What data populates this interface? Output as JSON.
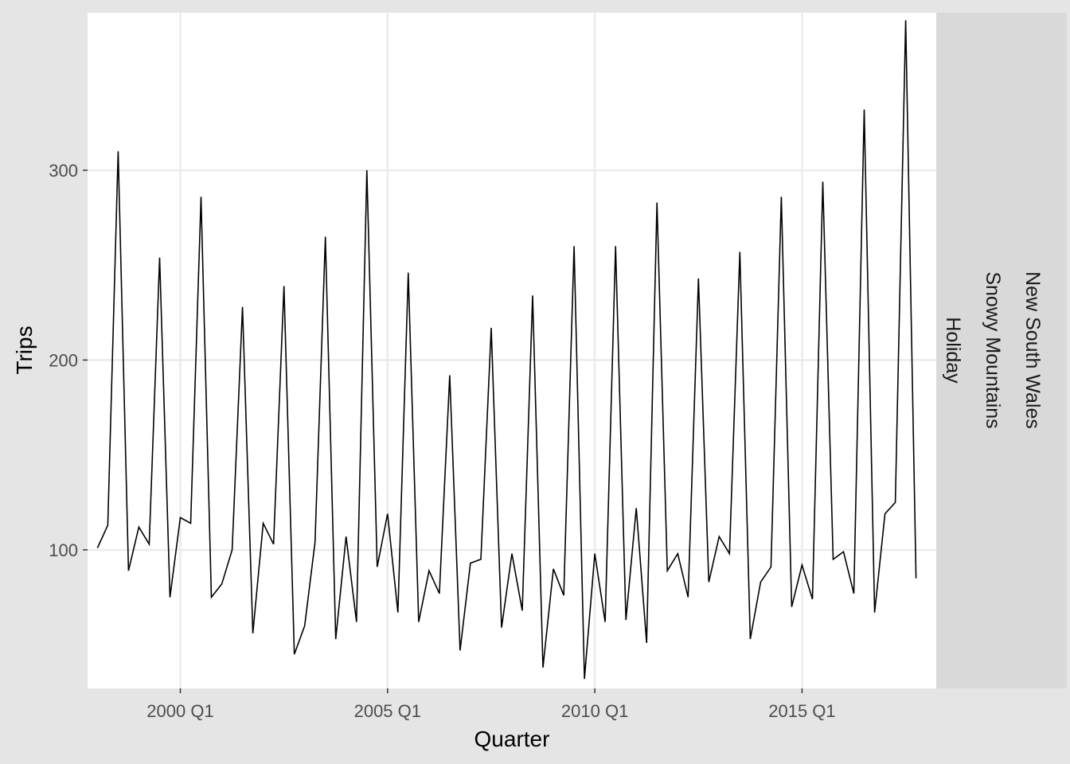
{
  "chart_data": {
    "type": "line",
    "xlabel": "Quarter",
    "ylabel": "Trips",
    "x_tick_labels": [
      "2000 Q1",
      "2005 Q1",
      "2010 Q1",
      "2015 Q1"
    ],
    "y_tick_labels": [
      "100",
      "200",
      "300"
    ],
    "ylim": [
      27,
      383
    ],
    "xlim": [
      "1997 Q4",
      "2018 Q2"
    ],
    "grid": true,
    "facet_strip": [
      "New South Wales",
      "Snowy Mountains",
      "Holiday"
    ],
    "colors": {
      "line": "#000000",
      "panel": "#ffffff",
      "background": "#e5e5e5",
      "strip": "#d9d9d9",
      "grid": "#ebebeb"
    },
    "series": [
      {
        "x": [
          "1998 Q1",
          "1998 Q2",
          "1998 Q3",
          "1998 Q4",
          "1999 Q1",
          "1999 Q2",
          "1999 Q3",
          "1999 Q4",
          "2000 Q1",
          "2000 Q2",
          "2000 Q3",
          "2000 Q4",
          "2001 Q1",
          "2001 Q2",
          "2001 Q3",
          "2001 Q4",
          "2002 Q1",
          "2002 Q2",
          "2002 Q3",
          "2002 Q4",
          "2003 Q1",
          "2003 Q2",
          "2003 Q3",
          "2003 Q4",
          "2004 Q1",
          "2004 Q2",
          "2004 Q3",
          "2004 Q4",
          "2005 Q1",
          "2005 Q2",
          "2005 Q3",
          "2005 Q4",
          "2006 Q1",
          "2006 Q2",
          "2006 Q3",
          "2006 Q4",
          "2007 Q1",
          "2007 Q2",
          "2007 Q3",
          "2007 Q4",
          "2008 Q1",
          "2008 Q2",
          "2008 Q3",
          "2008 Q4",
          "2009 Q1",
          "2009 Q2",
          "2009 Q3",
          "2009 Q4",
          "2010 Q1",
          "2010 Q2",
          "2010 Q3",
          "2010 Q4",
          "2011 Q1",
          "2011 Q2",
          "2011 Q3",
          "2011 Q4",
          "2012 Q1",
          "2012 Q2",
          "2012 Q3",
          "2012 Q4",
          "2013 Q1",
          "2013 Q2",
          "2013 Q3",
          "2013 Q4",
          "2014 Q1",
          "2014 Q2",
          "2014 Q3",
          "2014 Q4",
          "2015 Q1",
          "2015 Q2",
          "2015 Q3",
          "2015 Q4",
          "2016 Q1",
          "2016 Q2",
          "2016 Q3",
          "2016 Q4",
          "2017 Q1",
          "2017 Q2",
          "2017 Q3",
          "2017 Q4"
        ],
        "values": [
          101,
          113,
          310,
          89,
          112,
          103,
          254,
          75,
          117,
          114,
          286,
          75,
          82,
          100,
          228,
          56,
          114,
          103,
          239,
          45,
          60,
          104,
          265,
          53,
          107,
          62,
          300,
          91,
          119,
          67,
          246,
          62,
          89,
          77,
          192,
          47,
          93,
          95,
          217,
          59,
          98,
          68,
          234,
          38,
          90,
          76,
          260,
          32,
          98,
          62,
          260,
          63,
          122,
          51,
          283,
          89,
          98,
          75,
          243,
          83,
          107,
          98,
          257,
          53,
          83,
          91,
          286,
          70,
          92,
          74,
          294,
          95,
          99,
          77,
          332,
          67,
          119,
          125,
          379,
          85
        ]
      }
    ]
  }
}
